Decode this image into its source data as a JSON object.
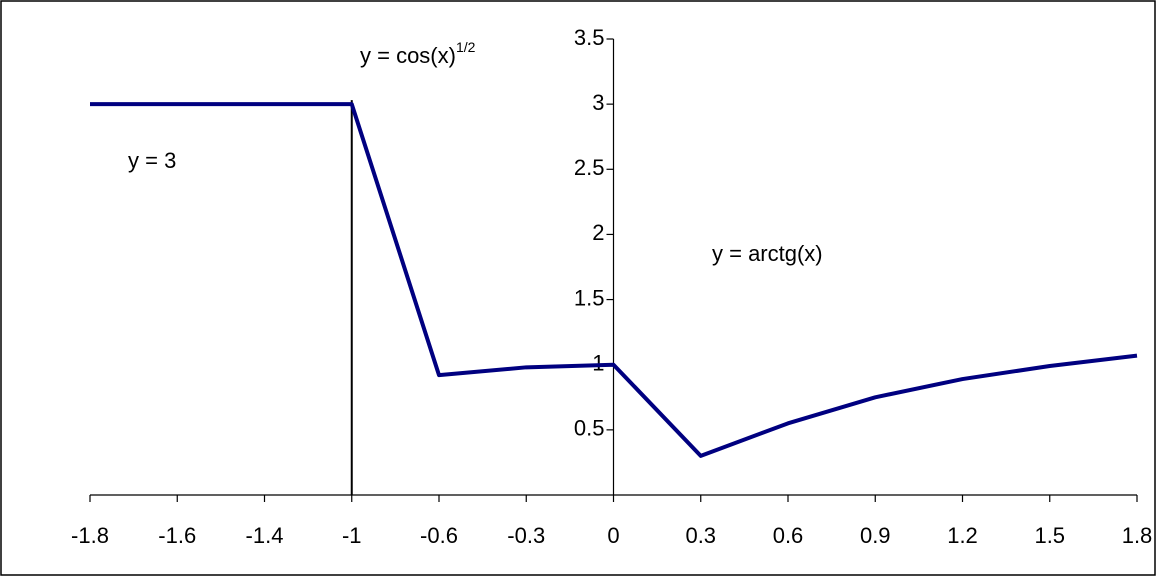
{
  "chart_data": {
    "type": "line",
    "categories": [
      "-1.8",
      "-1.6",
      "-1.4",
      "-1",
      "-0.6",
      "-0.3",
      "0",
      "0.3",
      "0.6",
      "0.9",
      "1.2",
      "1.5",
      "1.8"
    ],
    "series": [
      {
        "color": "#000080",
        "values": [
          3,
          3,
          3,
          3,
          0.92,
          0.98,
          1,
          0.3,
          0.55,
          0.75,
          0.89,
          0.99,
          1.07
        ]
      }
    ],
    "ylim": [
      0,
      3.5
    ],
    "yticks": [
      0.5,
      1,
      1.5,
      2,
      2.5,
      3,
      3.5
    ],
    "annotations": [
      {
        "text": "y = 3"
      },
      {
        "text": "y = cos(x)",
        "superscript": "1/2"
      },
      {
        "text": "y = arctg(x)"
      }
    ]
  }
}
